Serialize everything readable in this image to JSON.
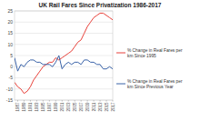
{
  "chart_data": {
    "type": "line",
    "title": "UK Rail Fares Since Privatization 1986-2017",
    "x": [
      1986,
      1987,
      1988,
      1989,
      1990,
      1991,
      1992,
      1993,
      1994,
      1995,
      1996,
      1997,
      1998,
      1999,
      2000,
      2001,
      2002,
      2003,
      2004,
      2005,
      2006,
      2007,
      2008,
      2009,
      2010,
      2011,
      2012,
      2013,
      2014,
      2015,
      2016,
      2017
    ],
    "series": [
      {
        "name": "% Change in Real Fares per km Since 1995",
        "color": "#e8413a",
        "values": [
          -7,
          -9,
          -10,
          -12,
          -11,
          -9,
          -6,
          -4,
          -2,
          0,
          1,
          2,
          2,
          4,
          3,
          4,
          5,
          6,
          7,
          9,
          11,
          12,
          15,
          18,
          20,
          22,
          23,
          24,
          24,
          23,
          22,
          21
        ]
      },
      {
        "name": "% Change in Real Fares per km Since Previous Year",
        "color": "#3a63a8",
        "values": [
          4,
          -2,
          1,
          0,
          2,
          3,
          3,
          2,
          2,
          1,
          1,
          1,
          0,
          2,
          5,
          -1,
          1,
          2,
          1,
          2,
          2,
          1,
          3,
          3,
          2,
          2,
          1,
          1,
          -1,
          -1,
          0,
          -1
        ]
      }
    ],
    "xlim": [
      1986,
      2017
    ],
    "xticks": [
      1987,
      1989,
      1991,
      1993,
      1995,
      1997,
      1999,
      2001,
      2003,
      2005,
      2007,
      2009,
      2011,
      2013,
      2015,
      2017
    ],
    "ylim": [
      -15,
      25
    ],
    "yticks": [
      -15,
      -10,
      -5,
      0,
      5,
      10,
      15,
      20,
      25
    ],
    "grid": true
  }
}
